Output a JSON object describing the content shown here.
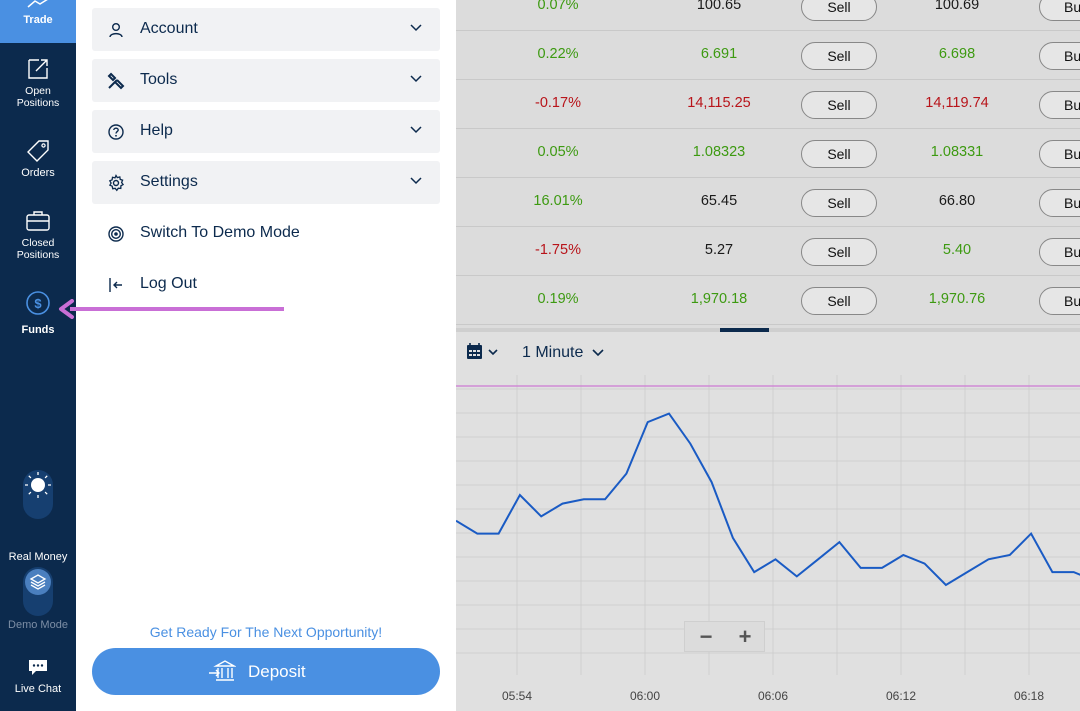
{
  "nav": {
    "trade": "Trade",
    "open_positions": [
      "Open",
      "Positions"
    ],
    "orders": "Orders",
    "closed_positions": [
      "Closed",
      "Positions"
    ],
    "funds": "Funds",
    "real_money": "Real Money",
    "demo_mode": "Demo Mode",
    "live_chat": "Live Chat"
  },
  "menu": {
    "account": "Account",
    "tools": "Tools",
    "help": "Help",
    "settings": "Settings",
    "switch_demo": "Switch To Demo Mode",
    "logout": "Log Out"
  },
  "promo": "Get Ready For The Next Opportunity!",
  "deposit_label": "Deposit",
  "quotes": [
    {
      "change": "0.07%",
      "change_color": "green",
      "sell": "100.65",
      "sell_color": "black",
      "buy": "100.69",
      "buy_color": "black"
    },
    {
      "change": "0.22%",
      "change_color": "green",
      "sell": "6.691",
      "sell_color": "green",
      "buy": "6.698",
      "buy_color": "green"
    },
    {
      "change": "-0.17%",
      "change_color": "red",
      "sell": "14,115.25",
      "sell_color": "red",
      "buy": "14,119.74",
      "buy_color": "red"
    },
    {
      "change": "0.05%",
      "change_color": "green",
      "sell": "1.08323",
      "sell_color": "green",
      "buy": "1.08331",
      "buy_color": "green"
    },
    {
      "change": "16.01%",
      "change_color": "green",
      "sell": "65.45",
      "sell_color": "black",
      "buy": "66.80",
      "buy_color": "black"
    },
    {
      "change": "-1.75%",
      "change_color": "red",
      "sell": "5.27",
      "sell_color": "black",
      "buy": "5.40",
      "buy_color": "green"
    },
    {
      "change": "0.19%",
      "change_color": "green",
      "sell": "1,970.18",
      "sell_color": "green",
      "buy": "1,970.76",
      "buy_color": "green"
    }
  ],
  "sell_label": "Sell",
  "buy_label": "Buy",
  "chart": {
    "interval": "1 Minute",
    "x_ticks": [
      "05:54",
      "06:00",
      "06:06",
      "06:12",
      "06:18"
    ],
    "series": [
      36,
      33,
      33,
      42,
      37,
      40,
      41,
      41,
      47,
      59,
      61,
      54,
      45,
      32,
      24,
      27,
      23,
      27,
      31,
      25,
      25,
      28,
      26,
      21,
      24,
      27,
      28,
      33,
      24,
      24,
      22,
      21,
      17,
      18
    ],
    "colors": {
      "line": "#1a5bc4",
      "reference": "#d08ad6"
    },
    "zoom_out": "−",
    "zoom_in": "+"
  },
  "colors": {
    "accent": "#4a90e2",
    "nav_bg": "#0c2a4d",
    "annotation": "#c96fd6"
  }
}
